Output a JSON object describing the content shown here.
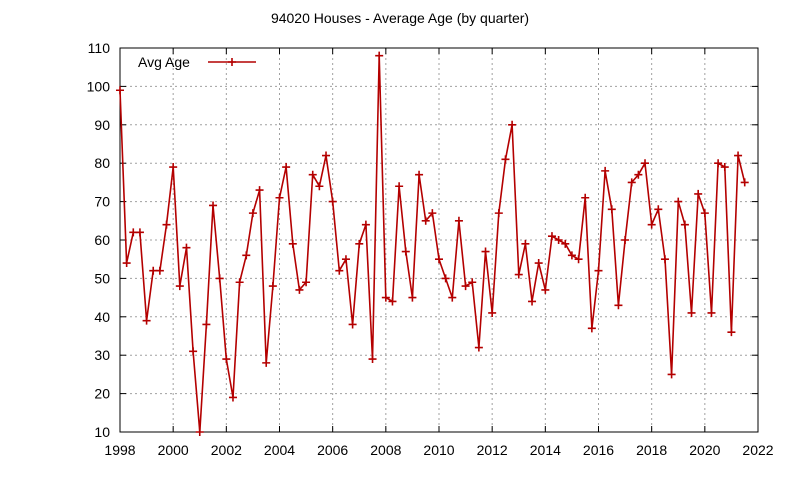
{
  "chart_data": {
    "type": "line",
    "title": "94020 Houses - Average Age (by quarter)",
    "xlabel": "",
    "ylabel": "",
    "xlim": [
      1998,
      2022
    ],
    "ylim": [
      10,
      110
    ],
    "x_ticks": [
      1998,
      2000,
      2002,
      2004,
      2006,
      2008,
      2010,
      2012,
      2014,
      2016,
      2018,
      2020,
      2022
    ],
    "y_ticks": [
      10,
      20,
      30,
      40,
      50,
      60,
      70,
      80,
      90,
      100,
      110
    ],
    "grid": true,
    "legend_position": "top-left",
    "series": [
      {
        "name": "Avg Age",
        "color": "#b40000",
        "marker": "plus",
        "x": [
          1998.0,
          1998.25,
          1998.5,
          1998.75,
          1999.0,
          1999.25,
          1999.5,
          1999.75,
          2000.0,
          2000.25,
          2000.5,
          2000.75,
          2001.0,
          2001.25,
          2001.5,
          2001.75,
          2002.0,
          2002.25,
          2002.5,
          2002.75,
          2003.0,
          2003.25,
          2003.5,
          2003.75,
          2004.0,
          2004.25,
          2004.5,
          2004.75,
          2005.0,
          2005.25,
          2005.5,
          2005.75,
          2006.0,
          2006.25,
          2006.5,
          2006.75,
          2007.0,
          2007.25,
          2007.5,
          2007.75,
          2008.0,
          2008.25,
          2008.5,
          2008.75,
          2009.0,
          2009.25,
          2009.5,
          2009.75,
          2010.0,
          2010.25,
          2010.5,
          2010.75,
          2011.0,
          2011.25,
          2011.5,
          2011.75,
          2012.0,
          2012.25,
          2012.5,
          2012.75,
          2013.0,
          2013.25,
          2013.5,
          2013.75,
          2014.0,
          2014.25,
          2014.5,
          2014.75,
          2015.0,
          2015.25,
          2015.5,
          2015.75,
          2016.0,
          2016.25,
          2016.5,
          2016.75,
          2017.0,
          2017.25,
          2017.5,
          2017.75,
          2018.0,
          2018.25,
          2018.5,
          2018.75,
          2019.0,
          2019.25,
          2019.5,
          2019.75,
          2020.0,
          2020.25,
          2020.5,
          2020.75,
          2021.0,
          2021.25,
          2021.5
        ],
        "values": [
          99,
          54,
          62,
          62,
          39,
          52,
          52,
          64,
          79,
          48,
          58,
          31,
          10,
          38,
          69,
          50,
          29,
          19,
          49,
          56,
          67,
          73,
          28,
          48,
          71,
          79,
          59,
          47,
          49,
          77,
          74,
          82,
          70,
          52,
          55,
          38,
          59,
          64,
          29,
          108,
          45,
          44,
          74,
          57,
          45,
          77,
          65,
          67,
          55,
          50,
          45,
          65,
          48,
          49,
          32,
          57,
          41,
          67,
          81,
          90,
          51,
          59,
          44,
          54,
          47,
          61,
          60,
          59,
          56,
          55,
          71,
          37,
          52,
          78,
          68,
          43,
          60,
          75,
          77,
          80,
          64,
          68,
          55,
          25,
          70,
          64,
          41,
          72,
          67,
          41,
          80,
          79,
          36,
          82,
          75
        ]
      }
    ]
  }
}
